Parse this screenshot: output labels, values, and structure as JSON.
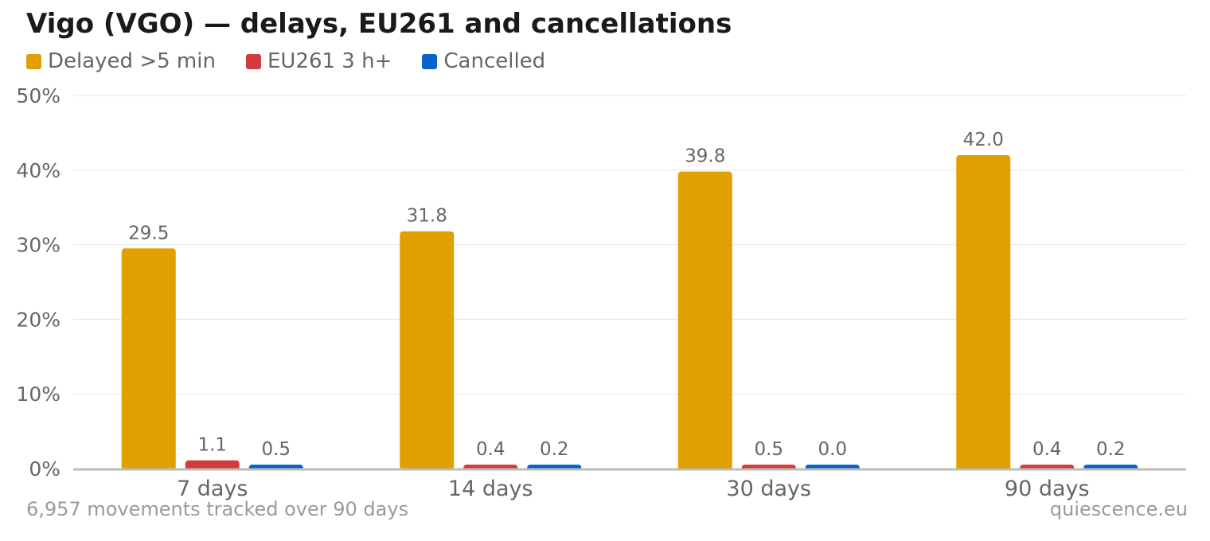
{
  "header": {
    "title": "Vigo (VGO) — delays, EU261 and cancellations"
  },
  "legend": [
    {
      "label": "Delayed >5 min",
      "color": "#e0a000"
    },
    {
      "label": "EU261 3 h+",
      "color": "#d43c3c"
    },
    {
      "label": "Cancelled",
      "color": "#0a64c8"
    }
  ],
  "chart_data": {
    "type": "bar",
    "title": "Vigo (VGO) — delays, EU261 and cancellations",
    "categories": [
      "7 days",
      "14 days",
      "30 days",
      "90 days"
    ],
    "series": [
      {
        "name": "Delayed >5 min",
        "color": "#e0a000",
        "values": [
          29.5,
          31.8,
          39.8,
          42.0
        ],
        "labels": [
          "29.5",
          "31.8",
          "39.8",
          "42.0"
        ]
      },
      {
        "name": "EU261 3 h+",
        "color": "#d43c3c",
        "values": [
          1.1,
          0.4,
          0.5,
          0.4
        ],
        "labels": [
          "1.1",
          "0.4",
          "0.5",
          "0.4"
        ]
      },
      {
        "name": "Cancelled",
        "color": "#0a64c8",
        "values": [
          0.5,
          0.2,
          0.0,
          0.2
        ],
        "labels": [
          "0.5",
          "0.2",
          "0.0",
          "0.2"
        ]
      }
    ],
    "ylim": [
      0,
      50
    ],
    "yticks": [
      0,
      10,
      20,
      30,
      40,
      50
    ],
    "ytick_labels": [
      "0%",
      "10%",
      "20%",
      "30%",
      "40%",
      "50%"
    ],
    "xlabel": "",
    "ylabel": "",
    "grid": true,
    "legend_position": "top-left"
  },
  "footer": {
    "note": "6,957 movements tracked over 90 days",
    "source": "quiescence.eu"
  }
}
